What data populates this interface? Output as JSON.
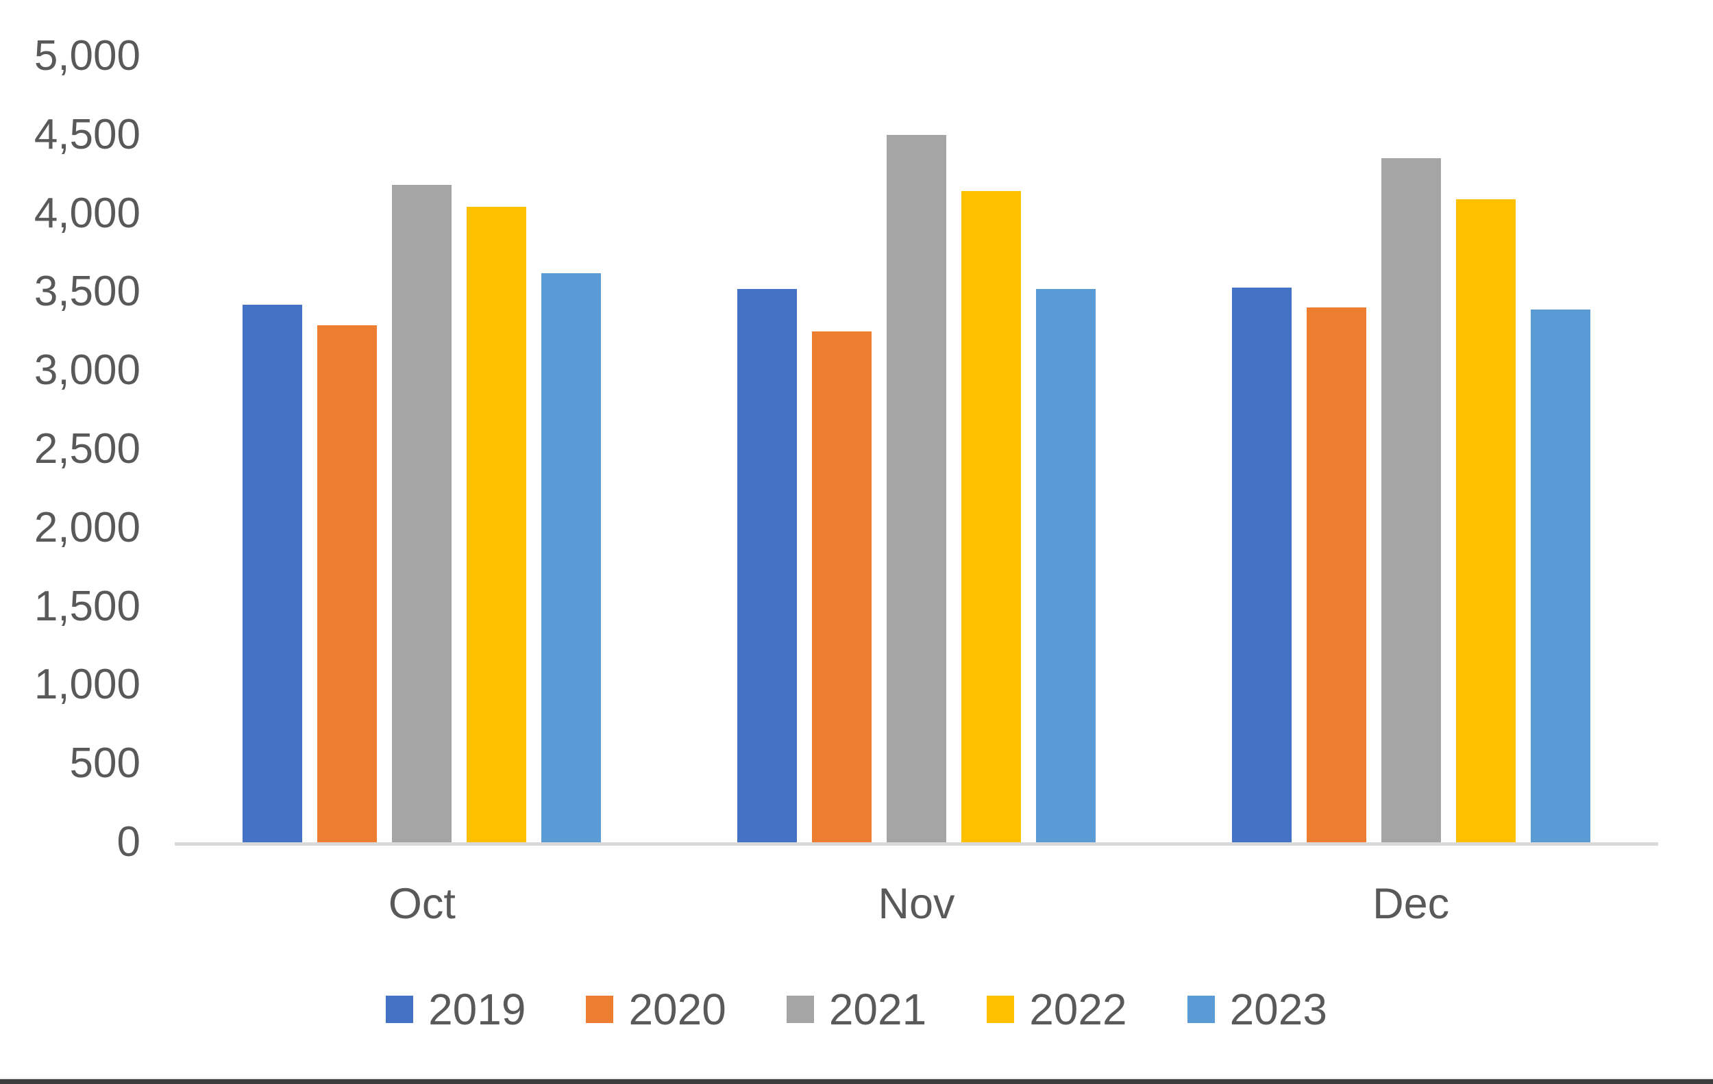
{
  "chart_data": {
    "type": "bar",
    "title": "",
    "categories": [
      "Oct",
      "Nov",
      "Dec"
    ],
    "series": [
      {
        "name": "2019",
        "color": "#4472C4",
        "values": [
          3420,
          3520,
          3530
        ]
      },
      {
        "name": "2020",
        "color": "#ED7D31",
        "values": [
          3290,
          3250,
          3400
        ]
      },
      {
        "name": "2021",
        "color": "#A5A5A5",
        "values": [
          4180,
          4500,
          4350
        ]
      },
      {
        "name": "2022",
        "color": "#FFC000",
        "values": [
          4040,
          4140,
          4090
        ]
      },
      {
        "name": "2023",
        "color": "#5B9BD5",
        "values": [
          3620,
          3520,
          3390
        ]
      }
    ],
    "xlabel": "",
    "ylabel": "",
    "ylim": [
      0,
      5000
    ],
    "ytick_step": 500,
    "yticks": [
      {
        "value": 0,
        "label": "0"
      },
      {
        "value": 500,
        "label": "500"
      },
      {
        "value": 1000,
        "label": "1,000"
      },
      {
        "value": 1500,
        "label": "1,500"
      },
      {
        "value": 2000,
        "label": "2,000"
      },
      {
        "value": 2500,
        "label": "2,500"
      },
      {
        "value": 3000,
        "label": "3,000"
      },
      {
        "value": 3500,
        "label": "3,500"
      },
      {
        "value": 4000,
        "label": "4,000"
      },
      {
        "value": 4500,
        "label": "4,500"
      },
      {
        "value": 5000,
        "label": "5,000"
      }
    ],
    "grid": false,
    "legend_position": "bottom",
    "axis_line_color": "#D9D9D9",
    "text_color": "#595959",
    "background_color": "#FFFFFF"
  }
}
